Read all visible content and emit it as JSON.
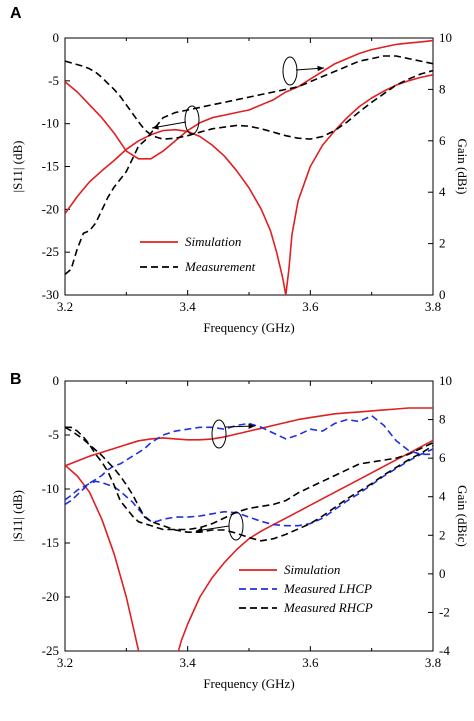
{
  "chart_data": [
    {
      "panel": "A",
      "type": "line",
      "xlabel": "Frequency (GHz)",
      "ylabel_left": "|S11| (dB)",
      "ylabel_right": "Gain (dBi)",
      "xlim": [
        3.2,
        3.8
      ],
      "ylim_left": [
        -30,
        0
      ],
      "ylim_right": [
        0,
        10
      ],
      "xticks": [
        "3.2",
        "3.4",
        "3.6",
        "3.8"
      ],
      "yticks_left": [
        "0",
        "-5",
        "-10",
        "-15",
        "-20",
        "-25",
        "-30"
      ],
      "yticks_right": [
        "10",
        "8",
        "6",
        "4",
        "2",
        "0"
      ],
      "legend_placement": "lower-left",
      "series": [
        {
          "name": "Simulation",
          "axis": "left",
          "color": "#e02020",
          "dash": "solid",
          "x": [
            3.2,
            3.22,
            3.24,
            3.26,
            3.28,
            3.3,
            3.32,
            3.34,
            3.36,
            3.38,
            3.4,
            3.42,
            3.44,
            3.46,
            3.48,
            3.5,
            3.52,
            3.535,
            3.545,
            3.555,
            3.56,
            3.565,
            3.57,
            3.58,
            3.6,
            3.62,
            3.64,
            3.66,
            3.68,
            3.7,
            3.72,
            3.74,
            3.76,
            3.78,
            3.8
          ],
          "y": [
            -20.5,
            -18.5,
            -16.8,
            -15.5,
            -14.3,
            -13.0,
            -12.0,
            -11.3,
            -10.8,
            -10.7,
            -10.9,
            -11.5,
            -12.5,
            -13.8,
            -15.5,
            -17.5,
            -20.0,
            -22.5,
            -25.0,
            -28.0,
            -30.0,
            -27.0,
            -23.0,
            -19.0,
            -15.0,
            -12.5,
            -10.8,
            -9.3,
            -8.0,
            -7.0,
            -6.2,
            -5.5,
            -5.0,
            -4.6,
            -4.3
          ]
        },
        {
          "name": "Simulation",
          "axis": "right",
          "color": "#e02020",
          "dash": "solid",
          "x": [
            3.2,
            3.22,
            3.24,
            3.26,
            3.28,
            3.3,
            3.32,
            3.34,
            3.36,
            3.38,
            3.4,
            3.42,
            3.44,
            3.46,
            3.48,
            3.5,
            3.52,
            3.54,
            3.56,
            3.58,
            3.6,
            3.62,
            3.64,
            3.66,
            3.68,
            3.7,
            3.72,
            3.74,
            3.76,
            3.78,
            3.8
          ],
          "y": [
            8.3,
            7.9,
            7.4,
            6.9,
            6.3,
            5.6,
            5.3,
            5.3,
            5.6,
            6.0,
            6.4,
            6.7,
            6.9,
            7.0,
            7.1,
            7.2,
            7.4,
            7.6,
            7.9,
            8.1,
            8.4,
            8.7,
            9.0,
            9.2,
            9.4,
            9.55,
            9.65,
            9.75,
            9.8,
            9.85,
            9.9
          ]
        },
        {
          "name": "Measurement",
          "axis": "left",
          "color": "#000000",
          "dash": "dashed",
          "x": [
            3.2,
            3.21,
            3.22,
            3.23,
            3.24,
            3.25,
            3.26,
            3.27,
            3.28,
            3.29,
            3.3,
            3.31,
            3.32,
            3.33,
            3.34,
            3.35,
            3.36,
            3.38,
            3.4,
            3.42,
            3.44,
            3.46,
            3.48,
            3.5,
            3.52,
            3.54,
            3.56,
            3.58,
            3.6,
            3.62,
            3.64,
            3.66,
            3.68,
            3.7,
            3.72,
            3.74,
            3.76,
            3.78,
            3.8
          ],
          "y": [
            -2.7,
            -2.9,
            -3.1,
            -3.3,
            -3.6,
            -4.0,
            -4.6,
            -5.3,
            -6.0,
            -6.8,
            -7.8,
            -8.8,
            -9.8,
            -10.7,
            -11.3,
            -11.6,
            -11.8,
            -11.7,
            -11.4,
            -11.0,
            -10.6,
            -10.4,
            -10.2,
            -10.3,
            -10.6,
            -11.0,
            -11.4,
            -11.7,
            -11.8,
            -11.5,
            -10.8,
            -9.8,
            -8.6,
            -7.5,
            -6.5,
            -5.5,
            -4.8,
            -4.2,
            -3.8
          ]
        },
        {
          "name": "Measurement",
          "axis": "right",
          "color": "#000000",
          "dash": "dashed",
          "x": [
            3.2,
            3.21,
            3.22,
            3.23,
            3.24,
            3.25,
            3.26,
            3.27,
            3.28,
            3.29,
            3.3,
            3.31,
            3.32,
            3.33,
            3.34,
            3.35,
            3.36,
            3.38,
            3.4,
            3.42,
            3.44,
            3.46,
            3.48,
            3.5,
            3.52,
            3.54,
            3.56,
            3.58,
            3.6,
            3.62,
            3.64,
            3.66,
            3.68,
            3.7,
            3.72,
            3.74,
            3.76,
            3.78,
            3.8
          ],
          "y": [
            0.8,
            1.0,
            1.8,
            2.4,
            2.5,
            2.8,
            3.3,
            3.8,
            4.2,
            4.5,
            4.8,
            5.3,
            5.8,
            6.0,
            6.3,
            6.6,
            6.9,
            7.1,
            7.2,
            7.3,
            7.4,
            7.5,
            7.6,
            7.7,
            7.8,
            7.9,
            8.0,
            8.1,
            8.3,
            8.5,
            8.7,
            8.9,
            9.1,
            9.2,
            9.3,
            9.3,
            9.2,
            9.1,
            9.0
          ]
        }
      ]
    },
    {
      "panel": "B",
      "type": "line",
      "xlabel": "Frequency (GHz)",
      "ylabel_left": "|S11| (dB)",
      "ylabel_right": "Gain (dBic)",
      "xlim": [
        3.2,
        3.8
      ],
      "ylim_left": [
        -25,
        0
      ],
      "ylim_right": [
        -4,
        10
      ],
      "xticks": [
        "3.2",
        "3.4",
        "3.6",
        "3.8"
      ],
      "yticks_left": [
        "0",
        "-5",
        "-10",
        "-15",
        "-20",
        "-25"
      ],
      "yticks_right": [
        "10",
        "8",
        "6",
        "4",
        "2",
        "0",
        "-2",
        "-4"
      ],
      "legend_placement": "lower-right",
      "series": [
        {
          "name": "Simulation",
          "axis": "left",
          "color": "#e02020",
          "dash": "solid",
          "x": [
            3.2,
            3.22,
            3.24,
            3.26,
            3.28,
            3.3,
            3.31,
            3.32,
            3.33
          ],
          "y": [
            -7.8,
            -8.8,
            -10.3,
            -12.8,
            -16.0,
            -20.0,
            -22.5,
            -25.0,
            -27.5
          ]
        },
        {
          "name": "Simulation",
          "axis": "left",
          "color": "#e02020",
          "dash": "solid",
          "x": [
            3.38,
            3.39,
            3.4,
            3.42,
            3.44,
            3.46,
            3.48,
            3.5,
            3.52,
            3.54,
            3.56,
            3.58,
            3.6,
            3.62,
            3.64,
            3.66,
            3.68,
            3.7,
            3.72,
            3.74,
            3.76,
            3.78,
            3.8
          ],
          "y": [
            -26.0,
            -24.0,
            -22.5,
            -20.0,
            -18.2,
            -16.8,
            -15.6,
            -14.6,
            -13.9,
            -13.3,
            -12.7,
            -12.1,
            -11.5,
            -10.9,
            -10.3,
            -9.7,
            -9.1,
            -8.5,
            -7.9,
            -7.3,
            -6.7,
            -6.1,
            -5.5
          ]
        },
        {
          "name": "Simulation",
          "axis": "right",
          "color": "#e02020",
          "dash": "solid",
          "x": [
            3.2,
            3.22,
            3.24,
            3.26,
            3.28,
            3.3,
            3.32,
            3.34,
            3.36,
            3.38,
            3.4,
            3.42,
            3.44,
            3.46,
            3.48,
            3.5,
            3.52,
            3.54,
            3.56,
            3.58,
            3.6,
            3.62,
            3.64,
            3.66,
            3.68,
            3.7,
            3.72,
            3.74,
            3.76,
            3.78,
            3.8
          ],
          "y": [
            5.6,
            5.85,
            6.1,
            6.3,
            6.5,
            6.7,
            6.9,
            7.0,
            7.05,
            7.0,
            6.95,
            6.95,
            7.0,
            7.1,
            7.25,
            7.4,
            7.55,
            7.7,
            7.85,
            8.0,
            8.1,
            8.2,
            8.3,
            8.35,
            8.4,
            8.45,
            8.5,
            8.55,
            8.6,
            8.6,
            8.6
          ]
        },
        {
          "name": "Measured LHCP",
          "axis": "left",
          "color": "#2030e0",
          "dash": "dashed",
          "x": [
            3.2,
            3.21,
            3.22,
            3.23,
            3.24,
            3.25,
            3.26,
            3.27,
            3.28,
            3.29,
            3.3,
            3.31,
            3.32,
            3.33,
            3.34,
            3.35,
            3.36,
            3.38,
            3.4,
            3.42,
            3.44,
            3.46,
            3.48,
            3.5,
            3.52,
            3.54,
            3.56,
            3.58,
            3.6,
            3.62,
            3.64,
            3.66,
            3.68,
            3.7,
            3.72,
            3.74,
            3.76,
            3.78,
            3.8
          ],
          "y": [
            -11.0,
            -10.6,
            -10.1,
            -9.8,
            -9.5,
            -9.3,
            -9.4,
            -9.6,
            -9.8,
            -10.2,
            -10.7,
            -11.2,
            -11.9,
            -12.5,
            -13.0,
            -13.0,
            -12.8,
            -12.6,
            -12.6,
            -12.5,
            -12.3,
            -12.1,
            -12.2,
            -12.6,
            -13.0,
            -13.3,
            -13.4,
            -13.4,
            -13.2,
            -12.7,
            -11.9,
            -11.1,
            -10.4,
            -9.6,
            -8.8,
            -8.1,
            -7.4,
            -6.8,
            -6.3
          ]
        },
        {
          "name": "Measured LHCP",
          "axis": "right",
          "color": "#2030e0",
          "dash": "dashed",
          "x": [
            3.2,
            3.21,
            3.22,
            3.23,
            3.24,
            3.25,
            3.26,
            3.27,
            3.28,
            3.29,
            3.3,
            3.31,
            3.32,
            3.33,
            3.34,
            3.35,
            3.36,
            3.38,
            3.4,
            3.42,
            3.44,
            3.46,
            3.48,
            3.5,
            3.52,
            3.54,
            3.56,
            3.58,
            3.6,
            3.62,
            3.64,
            3.66,
            3.68,
            3.7,
            3.72,
            3.74,
            3.76,
            3.78,
            3.8
          ],
          "y": [
            3.6,
            3.8,
            4.1,
            4.4,
            4.7,
            4.9,
            5.1,
            5.4,
            5.6,
            5.7,
            5.9,
            6.1,
            6.3,
            6.5,
            6.8,
            7.0,
            7.2,
            7.4,
            7.5,
            7.6,
            7.6,
            7.5,
            7.7,
            7.8,
            7.6,
            7.3,
            7.0,
            7.2,
            7.5,
            7.4,
            7.8,
            8.0,
            7.9,
            8.2,
            7.7,
            6.9,
            6.4,
            6.2,
            6.2
          ]
        },
        {
          "name": "Measured RHCP",
          "axis": "left",
          "color": "#000000",
          "dash": "dashed",
          "x": [
            3.2,
            3.21,
            3.22,
            3.23,
            3.24,
            3.25,
            3.26,
            3.27,
            3.28,
            3.29,
            3.3,
            3.31,
            3.32,
            3.33,
            3.34,
            3.35,
            3.36,
            3.38,
            3.4,
            3.42,
            3.44,
            3.46,
            3.48,
            3.5,
            3.52,
            3.54,
            3.56,
            3.58,
            3.6,
            3.62,
            3.64,
            3.66,
            3.68,
            3.7,
            3.72,
            3.74,
            3.76,
            3.78,
            3.8
          ],
          "y": [
            -4.3,
            -4.6,
            -5.0,
            -5.4,
            -5.9,
            -6.4,
            -6.9,
            -7.5,
            -8.1,
            -8.8,
            -9.6,
            -10.5,
            -11.6,
            -12.6,
            -13.0,
            -13.2,
            -13.4,
            -13.8,
            -14.0,
            -14.0,
            -13.8,
            -13.8,
            -14.1,
            -14.5,
            -14.8,
            -14.6,
            -14.2,
            -13.7,
            -13.2,
            -12.5,
            -11.7,
            -10.9,
            -10.2,
            -9.5,
            -8.7,
            -8.0,
            -7.3,
            -6.7,
            -6.0
          ]
        },
        {
          "name": "Measured RHCP",
          "axis": "right",
          "color": "#000000",
          "dash": "dashed",
          "x": [
            3.2,
            3.21,
            3.22,
            3.23,
            3.24,
            3.25,
            3.26,
            3.27,
            3.28,
            3.29,
            3.3,
            3.31,
            3.32,
            3.33,
            3.34,
            3.35,
            3.36,
            3.38,
            3.4,
            3.42,
            3.44,
            3.46,
            3.48,
            3.5,
            3.52,
            3.54,
            3.56,
            3.58,
            3.6,
            3.62,
            3.64,
            3.66,
            3.68,
            3.7,
            3.72,
            3.74,
            3.76,
            3.78,
            3.8
          ],
          "y": [
            7.6,
            7.6,
            7.4,
            7.1,
            6.7,
            6.2,
            5.8,
            5.3,
            4.6,
            3.8,
            3.4,
            3.0,
            2.7,
            2.6,
            2.5,
            2.4,
            2.3,
            2.3,
            2.3,
            2.4,
            2.6,
            2.9,
            3.2,
            3.4,
            3.5,
            3.6,
            3.8,
            4.2,
            4.5,
            4.8,
            5.1,
            5.4,
            5.7,
            5.8,
            5.9,
            6.0,
            6.2,
            6.5,
            6.8
          ]
        }
      ]
    }
  ]
}
